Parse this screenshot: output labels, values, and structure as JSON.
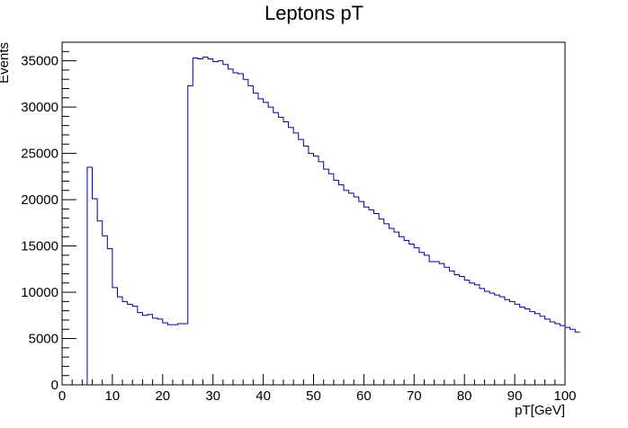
{
  "chart_data": {
    "type": "histogram",
    "title": "Leptons pT",
    "xlabel": "pT[GeV]",
    "ylabel": "Events",
    "xlim": [
      0,
      100
    ],
    "ylim": [
      0,
      37000
    ],
    "bin_width": 1,
    "series": [
      {
        "name": "Leptons pT",
        "color": "#000099",
        "x_start": 5,
        "values": [
          23500,
          20100,
          17700,
          16100,
          14700,
          10500,
          9500,
          9000,
          8700,
          8500,
          7800,
          7500,
          7600,
          7200,
          7100,
          6700,
          6500,
          6500,
          6600,
          6600,
          32300,
          35300,
          35200,
          35400,
          35200,
          34900,
          35000,
          34600,
          34100,
          33700,
          33600,
          33000,
          32300,
          31500,
          30900,
          30500,
          30000,
          29400,
          28900,
          28400,
          27800,
          27200,
          26500,
          25800,
          25000,
          24700,
          24100,
          23300,
          22800,
          22100,
          21600,
          21000,
          20700,
          20300,
          19800,
          19200,
          18900,
          18500,
          17900,
          17400,
          16900,
          16500,
          16000,
          15600,
          15200,
          14800,
          14300,
          14000,
          13300,
          13300,
          13100,
          12700,
          12300,
          11900,
          11700,
          11300,
          11000,
          10800,
          10400,
          10100,
          9900,
          9700,
          9500,
          9200,
          9000,
          8700,
          8400,
          8200,
          7900,
          7700,
          7400,
          7100,
          6800,
          6600,
          6400,
          6200,
          6000,
          5700
        ]
      }
    ],
    "x_ticks": [
      0,
      10,
      20,
      30,
      40,
      50,
      60,
      70,
      80,
      90,
      100
    ],
    "y_ticks": [
      0,
      5000,
      10000,
      15000,
      20000,
      25000,
      30000,
      35000
    ]
  }
}
